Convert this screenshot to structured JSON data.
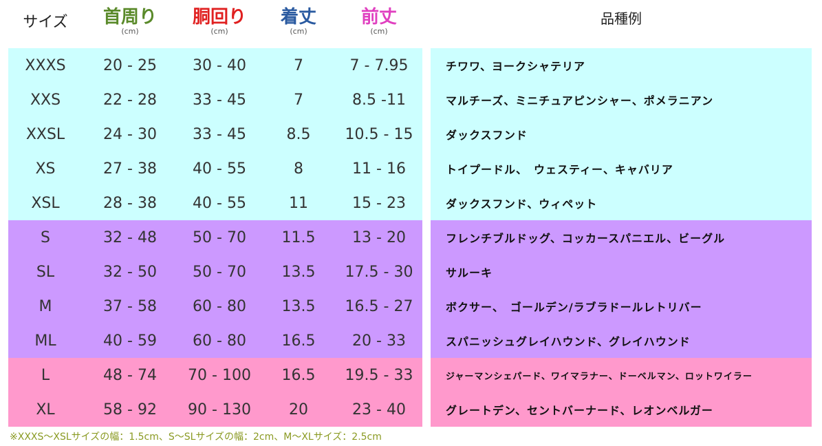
{
  "colors": {
    "cyan": "#ccffff",
    "purple": "#cc99ff",
    "pink": "#ff99cc",
    "neck": "#5a8a2a",
    "chest": "#e02020",
    "length": "#2a5aa0",
    "front": "#e040c0"
  },
  "headers": [
    {
      "label": "サイズ",
      "unit": ""
    },
    {
      "label": "首周り",
      "unit": "(cm)"
    },
    {
      "label": "胴回り",
      "unit": "(cm)"
    },
    {
      "label": "着丈",
      "unit": "(cm)"
    },
    {
      "label": "前丈",
      "unit": "(cm)"
    }
  ],
  "breed_header": "品種例",
  "rows": [
    {
      "group": "cyan",
      "cells": [
        "XXXS",
        "20 - 25",
        "30 - 40",
        "7",
        "7 - 7.95"
      ],
      "breeds": "チワワ、ヨークシャテリア"
    },
    {
      "group": "cyan",
      "cells": [
        "XXS",
        "22 - 28",
        "33 - 45",
        "7",
        "8.5  -11"
      ],
      "breeds": "マルチーズ、ミニチュアピンシャー、ポメラニアン"
    },
    {
      "group": "cyan",
      "cells": [
        "XXSL",
        "24 - 30",
        "33 - 45",
        "8.5",
        "10.5 - 15"
      ],
      "breeds": "ダックスフンド"
    },
    {
      "group": "cyan",
      "cells": [
        "XS",
        "27  - 38",
        "40 - 55",
        "8",
        "11 - 16"
      ],
      "breeds": "トイプードル、　ウェスティー、キャバリア"
    },
    {
      "group": "cyan",
      "cells": [
        "XSL",
        "28 - 38",
        "40 - 55",
        "11",
        "15 - 23"
      ],
      "breeds": "ダックスフンド、ウィペット"
    },
    {
      "group": "purple",
      "cells": [
        "S",
        "32 - 48",
        "50 - 70",
        "11.5",
        "13 - 20"
      ],
      "breeds": "フレンチブルドッグ、コッカースパニエル、ビーグル"
    },
    {
      "group": "purple",
      "cells": [
        "SL",
        "32 - 50",
        "50 - 70",
        "13.5",
        "17.5 - 30"
      ],
      "breeds": "サルーキ"
    },
    {
      "group": "purple",
      "cells": [
        "M",
        "37 - 58",
        "60 - 80",
        "13.5",
        "16.5 - 27"
      ],
      "breeds": "ボクサー、　ゴールデン/ラブラドールレトリバー"
    },
    {
      "group": "purple",
      "cells": [
        "ML",
        "40 - 59",
        "60 - 80",
        "16.5",
        "20 - 33"
      ],
      "breeds": "スパニッシュグレイハウンド、グレイハウンド"
    },
    {
      "group": "pink",
      "cells": [
        "L",
        "48 - 74",
        "70 - 100",
        "16.5",
        "19.5 - 33"
      ],
      "breeds": "ジャーマンシェパード、ワイマラナー、ドーベルマン、ロットワイラー",
      "small": true
    },
    {
      "group": "pink",
      "cells": [
        "XL",
        "58 - 92",
        "90 - 130",
        "20",
        "23 - 40"
      ],
      "breeds": "グレートデン、セントバーナード、レオンベルガー"
    }
  ],
  "footnote": "※XXXS～XSLサイズの幅：1.5cm、S～SLサイズの幅：2cm、M～XLサイズ：2.5cm"
}
